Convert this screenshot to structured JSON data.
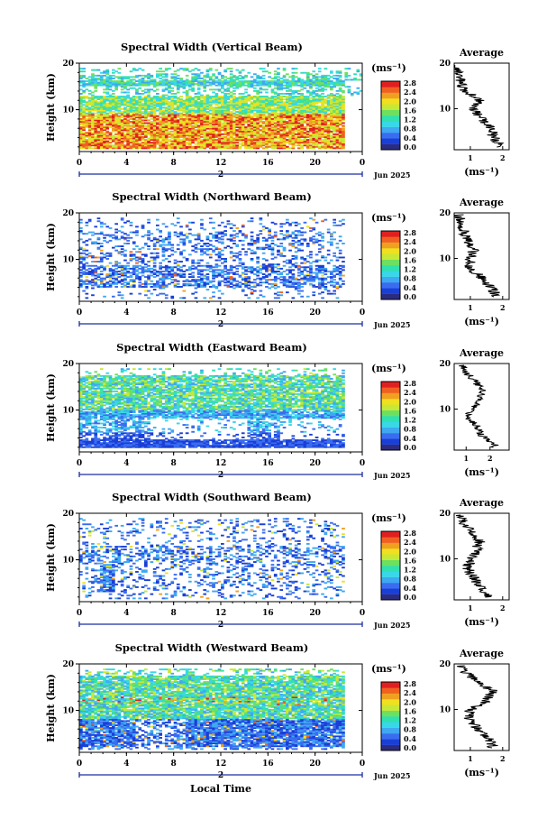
{
  "figure": {
    "x_axis_label": "Local Time",
    "month_label": "Jun 2025",
    "colorbar_unit": "(ms⁻¹)",
    "avg_title": "Average",
    "avg_xlabel": "(ms⁻¹)",
    "y_label": "Height (km)",
    "date_marker": "2"
  },
  "colors": {
    "scale": [
      "#2b2b80",
      "#1a3fd6",
      "#3a6cf0",
      "#3fa8f0",
      "#38d8e8",
      "#30e0b0",
      "#6ee060",
      "#c8e838",
      "#f0e020",
      "#f0a020",
      "#f06020",
      "#e02020"
    ]
  },
  "chart_data": [
    {
      "type": "heatmap",
      "title": "Spectral Width (Vertical Beam)",
      "xlim": [
        0,
        24
      ],
      "ylim": [
        1,
        20
      ],
      "x_ticks": [
        "0",
        "4",
        "8",
        "12",
        "16",
        "20",
        "0"
      ],
      "y_ticks": [
        "20",
        "10"
      ],
      "colorbar_ticks": [
        "2.8",
        "2.4",
        "2.0",
        "1.6",
        "1.2",
        "0.8",
        "0.4",
        "0.0"
      ],
      "colorbar_range": [
        0,
        3
      ],
      "avg_profile": {
        "x_ticks": [
          "1",
          "2"
        ],
        "xlim": [
          0.5,
          2.2
        ],
        "height_km": [
          2,
          4,
          6,
          8,
          10,
          12,
          14,
          16,
          18,
          20
        ],
        "width_ms": [
          1.9,
          1.7,
          1.6,
          1.3,
          1.1,
          1.3,
          0.8,
          0.7,
          0.6,
          0.5
        ]
      }
    },
    {
      "type": "heatmap",
      "title": "Spectral Width (Northward Beam)",
      "xlim": [
        0,
        24
      ],
      "ylim": [
        1,
        20
      ],
      "x_ticks": [
        "0",
        "4",
        "8",
        "12",
        "16",
        "20",
        "0"
      ],
      "y_ticks": [
        "20",
        "10"
      ],
      "colorbar_ticks": [
        "2.8",
        "2.4",
        "2.0",
        "1.6",
        "1.2",
        "0.8",
        "0.4",
        "0.0"
      ],
      "colorbar_range": [
        0,
        3
      ],
      "avg_profile": {
        "x_ticks": [
          "1",
          "2"
        ],
        "xlim": [
          0.5,
          2.2
        ],
        "height_km": [
          2,
          4,
          6,
          8,
          10,
          12,
          14,
          16,
          18,
          20
        ],
        "width_ms": [
          1.8,
          1.6,
          1.3,
          1.0,
          1.0,
          1.1,
          0.9,
          0.8,
          0.7,
          0.6
        ]
      }
    },
    {
      "type": "heatmap",
      "title": "Spectral Width (Eastward Beam)",
      "xlim": [
        0,
        24
      ],
      "ylim": [
        1,
        20
      ],
      "x_ticks": [
        "0",
        "4",
        "8",
        "12",
        "16",
        "20",
        "0"
      ],
      "y_ticks": [
        "20",
        "10"
      ],
      "colorbar_ticks": [
        "2.8",
        "2.4",
        "2.0",
        "1.6",
        "1.2",
        "0.8",
        "0.4",
        "0.0"
      ],
      "colorbar_range": [
        0,
        3
      ],
      "avg_profile": {
        "x_ticks": [
          "1",
          "2"
        ],
        "xlim": [
          0.5,
          2.8
        ],
        "height_km": [
          2,
          4,
          6,
          8,
          10,
          12,
          14,
          16,
          18,
          20
        ],
        "width_ms": [
          2.2,
          1.7,
          1.5,
          1.1,
          1.2,
          1.6,
          1.7,
          1.4,
          1.0,
          0.8
        ]
      }
    },
    {
      "type": "heatmap",
      "title": "Spectral Width (Southward Beam)",
      "xlim": [
        0,
        24
      ],
      "ylim": [
        1,
        20
      ],
      "x_ticks": [
        "0",
        "4",
        "8",
        "12",
        "16",
        "20",
        "0"
      ],
      "y_ticks": [
        "20",
        "10"
      ],
      "colorbar_ticks": [
        "2.8",
        "2.4",
        "2.0",
        "1.6",
        "1.2",
        "0.8",
        "0.4",
        "0.0"
      ],
      "colorbar_range": [
        0,
        3
      ],
      "avg_profile": {
        "x_ticks": [
          "1",
          "2"
        ],
        "xlim": [
          0.5,
          2.2
        ],
        "height_km": [
          2,
          4,
          6,
          8,
          10,
          12,
          14,
          16,
          18,
          20
        ],
        "width_ms": [
          1.5,
          1.3,
          1.1,
          0.9,
          1.0,
          1.2,
          1.3,
          1.0,
          0.8,
          0.7
        ]
      }
    },
    {
      "type": "heatmap",
      "title": "Spectral Width (Westward Beam)",
      "xlim": [
        0,
        24
      ],
      "ylim": [
        1,
        20
      ],
      "x_ticks": [
        "0",
        "4",
        "8",
        "12",
        "16",
        "20",
        "0"
      ],
      "y_ticks": [
        "20",
        "10"
      ],
      "colorbar_ticks": [
        "2.8",
        "2.4",
        "2.0",
        "1.6",
        "1.2",
        "0.8",
        "0.4",
        "0.0"
      ],
      "colorbar_range": [
        0,
        3
      ],
      "avg_profile": {
        "x_ticks": [
          "1",
          "2"
        ],
        "xlim": [
          0.5,
          2.2
        ],
        "height_km": [
          2,
          4,
          6,
          8,
          10,
          12,
          14,
          16,
          18,
          20
        ],
        "width_ms": [
          1.7,
          1.5,
          1.2,
          0.9,
          1.0,
          1.5,
          1.7,
          1.2,
          0.9,
          0.6
        ]
      }
    }
  ]
}
